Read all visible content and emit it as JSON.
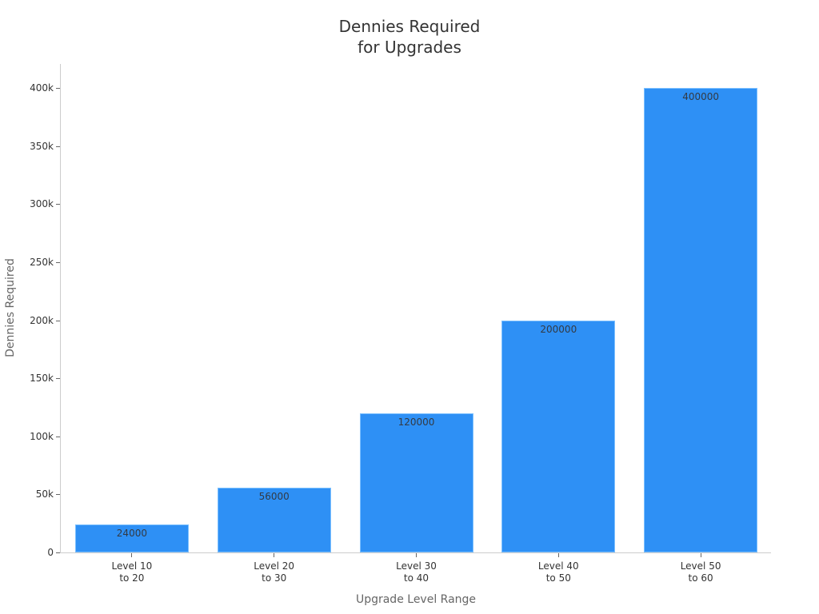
{
  "chart_data": {
    "type": "bar",
    "title": "Dennies Required\nfor Upgrades",
    "title_lines": [
      "Dennies Required",
      "for Upgrades"
    ],
    "xlabel": "Upgrade Level Range",
    "ylabel": "Dennies Required",
    "categories": [
      "Level 10 to 20",
      "Level 20 to 30",
      "Level 30 to 40",
      "Level 40 to 50",
      "Level 50 to 60"
    ],
    "category_lines": [
      [
        "Level 10",
        "to 20"
      ],
      [
        "Level 20",
        "to 30"
      ],
      [
        "Level 30",
        "to 40"
      ],
      [
        "Level 40",
        "to 50"
      ],
      [
        "Level 50",
        "to 60"
      ]
    ],
    "values": [
      24000,
      56000,
      120000,
      200000,
      400000
    ],
    "data_labels": [
      "24000",
      "56000",
      "120000",
      "200000",
      "400000"
    ],
    "ylim": [
      0,
      420000
    ],
    "yticks": [
      0,
      50000,
      100000,
      150000,
      200000,
      250000,
      300000,
      350000,
      400000
    ],
    "ytick_labels": [
      "0",
      "50k",
      "100k",
      "150k",
      "200k",
      "250k",
      "300k",
      "350k",
      "400k"
    ],
    "grid": false,
    "legend": null,
    "bar_color": "#2e90f5"
  }
}
